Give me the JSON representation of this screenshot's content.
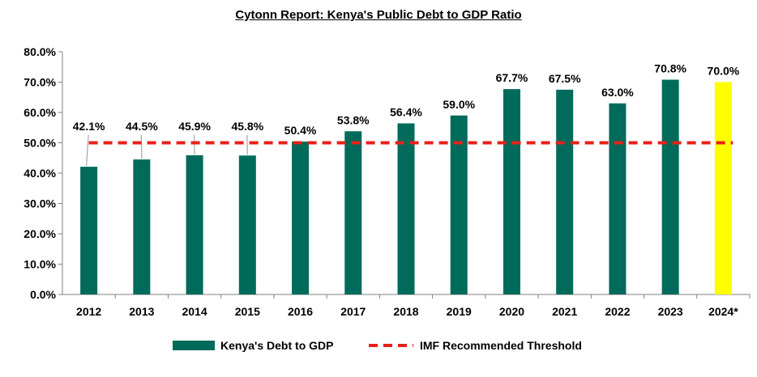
{
  "chart_data": {
    "type": "bar",
    "title": "Cytonn Report: Kenya's Public Debt to GDP Ratio",
    "xlabel": "",
    "ylabel": "",
    "ylim": [
      0,
      80
    ],
    "yticks": [
      "0.0%",
      "10.0%",
      "20.0%",
      "30.0%",
      "40.0%",
      "50.0%",
      "60.0%",
      "70.0%",
      "80.0%"
    ],
    "categories": [
      "2012",
      "2013",
      "2014",
      "2015",
      "2016",
      "2017",
      "2018",
      "2019",
      "2020",
      "2021",
      "2022",
      "2023",
      "2024*"
    ],
    "series": [
      {
        "name": "Kenya's Debt to GDP",
        "values": [
          42.1,
          44.5,
          45.9,
          45.8,
          50.4,
          53.8,
          56.4,
          59.0,
          67.7,
          67.5,
          63.0,
          70.8,
          70.0
        ],
        "labels": [
          "42.1%",
          "44.5%",
          "45.9%",
          "45.8%",
          "50.4%",
          "53.8%",
          "56.4%",
          "59.0%",
          "67.7%",
          "67.5%",
          "63.0%",
          "70.8%",
          "70.0%"
        ],
        "color": "#006B5A",
        "highlight_color": "#FFFF00",
        "highlight_index": 12
      },
      {
        "name": "IMF Recommended Threshold",
        "type": "line",
        "style": "dashed",
        "value": 50,
        "color": "#E8201C"
      }
    ],
    "legend": "bottom",
    "grid": false
  }
}
